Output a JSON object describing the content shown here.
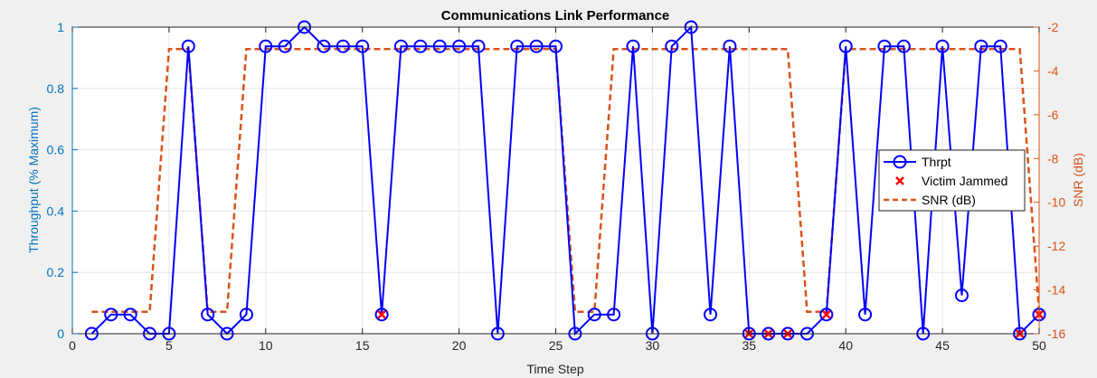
{
  "chart_data": {
    "type": "line",
    "title": "Communications Link Performance",
    "xlabel": "Time Step",
    "ylabel_left": "Throughput (% Maximum)",
    "ylabel_right": "SNR (dB)",
    "xlim": [
      0,
      50
    ],
    "ylim_left": [
      0,
      1
    ],
    "ylim_right": [
      -16,
      -2
    ],
    "x_ticks": [
      0,
      5,
      10,
      15,
      20,
      25,
      30,
      35,
      40,
      45,
      50
    ],
    "y_ticks_left": [
      0,
      0.2,
      0.4,
      0.6,
      0.8,
      1
    ],
    "y_ticks_right": [
      -16,
      -14,
      -12,
      -10,
      -8,
      -6,
      -4,
      -2
    ],
    "grid": true,
    "legend_position": "right",
    "x": [
      1,
      2,
      3,
      4,
      5,
      6,
      7,
      8,
      9,
      10,
      11,
      12,
      13,
      14,
      15,
      16,
      17,
      18,
      19,
      20,
      21,
      22,
      23,
      24,
      25,
      26,
      27,
      28,
      29,
      30,
      31,
      32,
      33,
      34,
      35,
      36,
      37,
      38,
      39,
      40,
      41,
      42,
      43,
      44,
      45,
      46,
      47,
      48,
      49,
      50
    ],
    "series": [
      {
        "name": "Thrpt",
        "axis": "left",
        "color": "#0000ff",
        "style": "solid-circle",
        "values": [
          0,
          0.0625,
          0.0625,
          0,
          0,
          0.9375,
          0.0625,
          0,
          0.0625,
          0.9375,
          0.9375,
          1,
          0.9375,
          0.9375,
          0.9375,
          0.0625,
          0.9375,
          0.9375,
          0.9375,
          0.9375,
          0.9375,
          0,
          0.9375,
          0.9375,
          0.9375,
          0,
          0.0625,
          0.0625,
          0.9375,
          0,
          0.9375,
          1,
          0.0625,
          0.9375,
          0,
          0,
          0,
          0,
          0.0625,
          0.9375,
          0.0625,
          0.9375,
          0.9375,
          0,
          0.9375,
          0.125,
          0.9375,
          0.9375,
          0,
          0.0625
        ]
      },
      {
        "name": "Victim Jammed",
        "axis": "left",
        "color": "#ff0000",
        "style": "x-marker",
        "x": [
          16,
          35,
          36,
          37,
          39,
          49,
          50
        ],
        "values": [
          0.0625,
          0,
          0,
          0,
          0.0625,
          0,
          0.0625
        ]
      },
      {
        "name": "SNR (dB)",
        "axis": "right",
        "color": "#d95319",
        "style": "dashed",
        "values": [
          -15,
          -15,
          -15,
          -15,
          -3,
          -3,
          -15,
          -15,
          -3,
          -3,
          -3,
          -3,
          -3,
          -3,
          -3,
          -3,
          -3,
          -3,
          -3,
          -3,
          -3,
          -3,
          -3,
          -3,
          -3,
          -15,
          -15,
          -3,
          -3,
          -3,
          -3,
          -3,
          -3,
          -3,
          -3,
          -3,
          -3,
          -15,
          -15,
          -3,
          -3,
          -3,
          -3,
          -3,
          -3,
          -3,
          -3,
          -3,
          -3,
          -15
        ]
      }
    ]
  }
}
